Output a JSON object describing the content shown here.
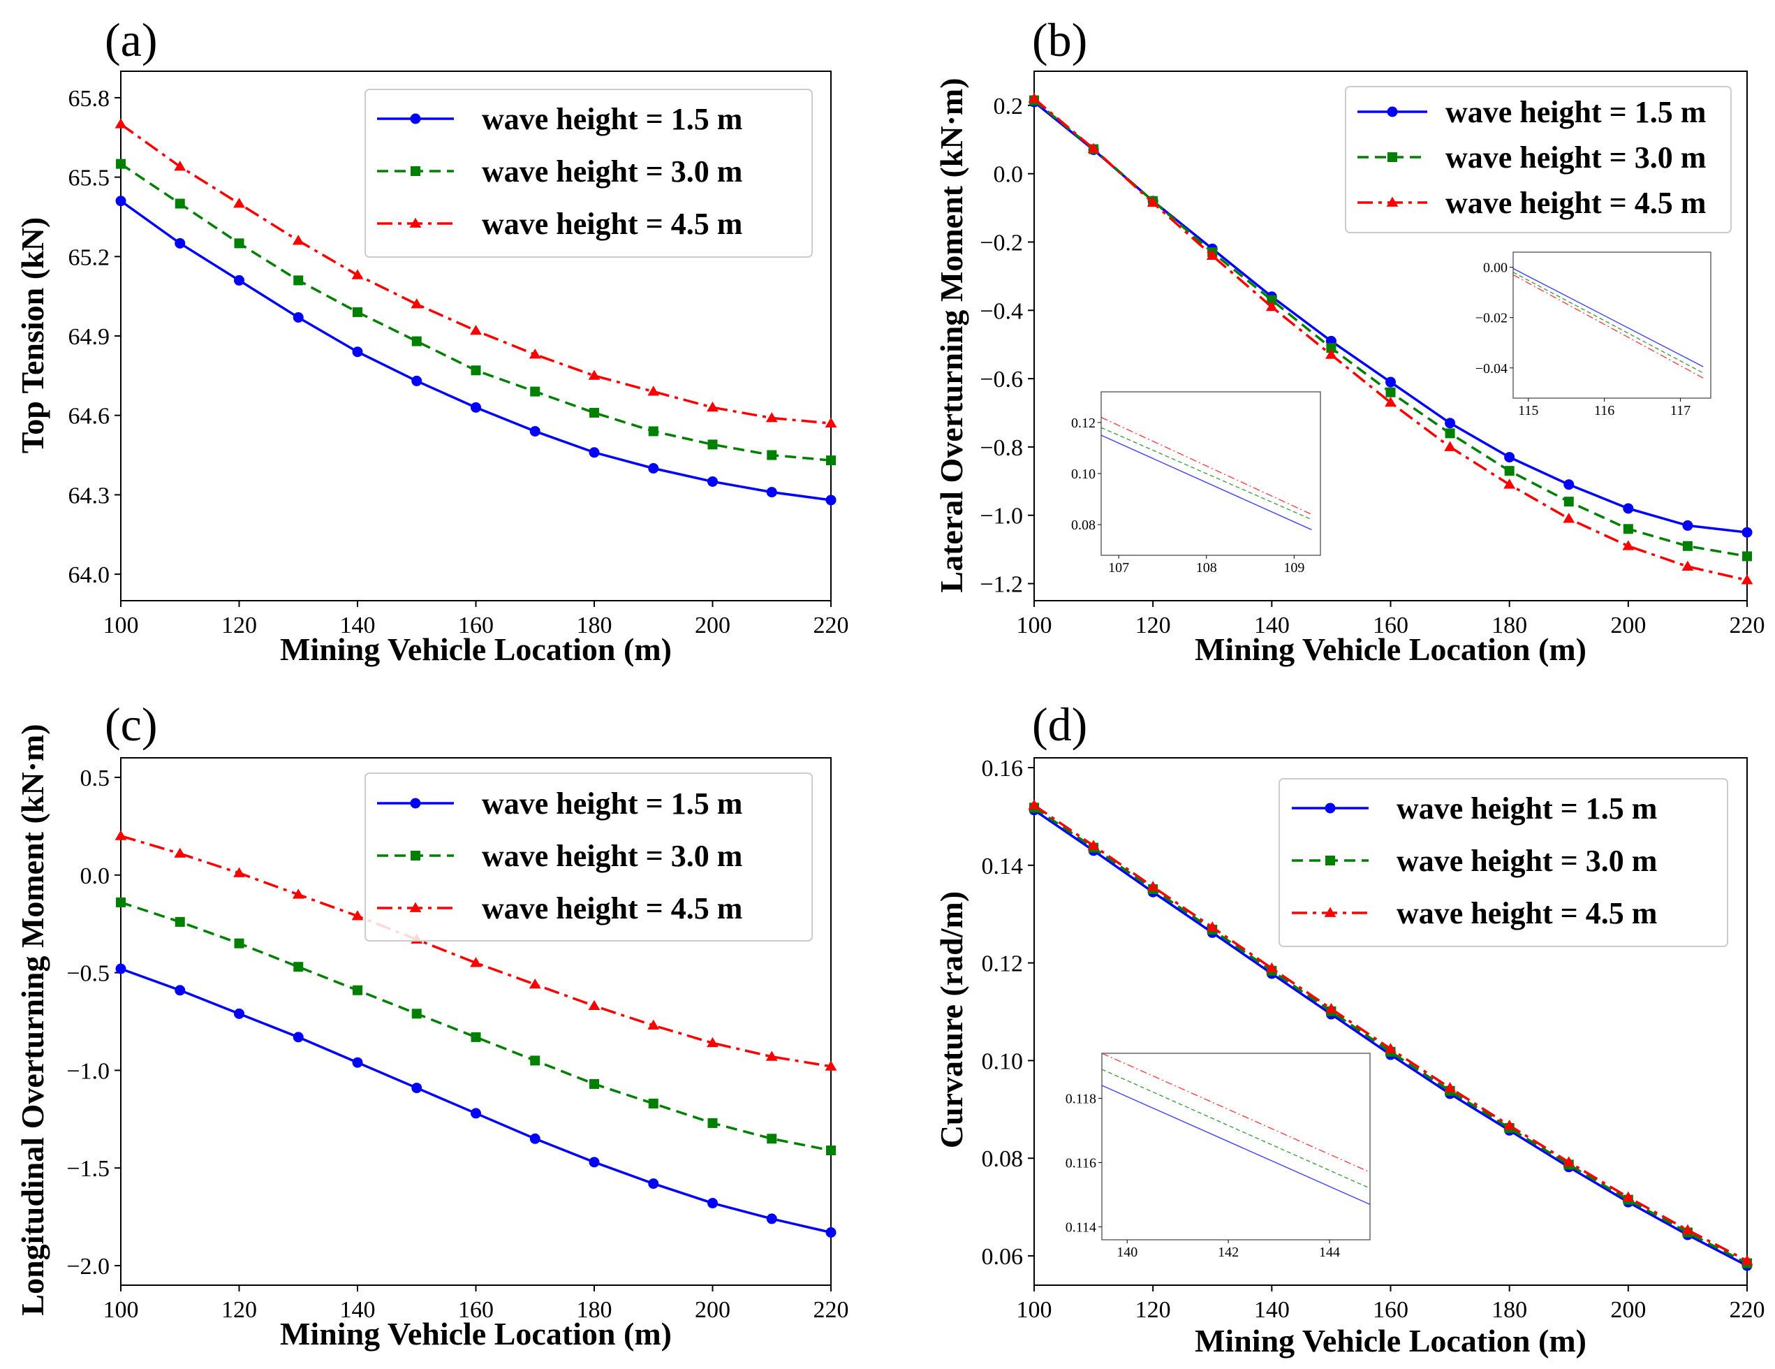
{
  "chart_data": [
    {
      "id": "a",
      "type": "line",
      "panel_label": "(a)",
      "title": "",
      "xlabel": "Mining Vehicle Location (m)",
      "ylabel": "Top Tension (kN)",
      "xlim": [
        100,
        220
      ],
      "ylim": [
        63.9,
        65.9
      ],
      "xticks": [
        100,
        120,
        140,
        160,
        180,
        200,
        220
      ],
      "yticks": [
        64.0,
        64.3,
        64.6,
        64.9,
        65.2,
        65.5,
        65.8
      ],
      "ytick_labels": [
        "64.0",
        "64.3",
        "64.6",
        "64.9",
        "65.2",
        "65.5",
        "65.8"
      ],
      "legend_position": "top-right",
      "x": [
        100,
        110,
        120,
        130,
        140,
        150,
        160,
        170,
        180,
        190,
        200,
        210,
        220
      ],
      "series": [
        {
          "name": "wave height = 1.5 m",
          "values": [
            65.41,
            65.25,
            65.11,
            64.97,
            64.84,
            64.73,
            64.63,
            64.54,
            64.46,
            64.4,
            64.35,
            64.31,
            64.28
          ]
        },
        {
          "name": "wave height = 3.0 m",
          "values": [
            65.55,
            65.4,
            65.25,
            65.11,
            64.99,
            64.88,
            64.77,
            64.69,
            64.61,
            64.54,
            64.49,
            64.45,
            64.43
          ]
        },
        {
          "name": "wave height = 4.5 m",
          "values": [
            65.7,
            65.54,
            65.4,
            65.26,
            65.13,
            65.02,
            64.92,
            64.83,
            64.75,
            64.69,
            64.63,
            64.59,
            64.57
          ]
        }
      ],
      "insets": []
    },
    {
      "id": "b",
      "type": "line",
      "panel_label": "(b)",
      "title": "",
      "xlabel": "Mining Vehicle Location (m)",
      "ylabel": "Lateral Overturning Moment (kN·m)",
      "xlim": [
        100,
        220
      ],
      "ylim": [
        -1.25,
        0.3
      ],
      "xticks": [
        100,
        120,
        140,
        160,
        180,
        200,
        220
      ],
      "yticks": [
        0.2,
        0.0,
        -0.2,
        -0.4,
        -0.6,
        -0.8,
        -1.0,
        -1.2
      ],
      "ytick_labels": [
        "0.2",
        "0.0",
        "−0.2",
        "−0.4",
        "−0.6",
        "−0.8",
        "−1.0",
        "−1.2"
      ],
      "legend_position": "top-right",
      "x": [
        100,
        110,
        120,
        130,
        140,
        150,
        160,
        170,
        180,
        190,
        200,
        210,
        220
      ],
      "series": [
        {
          "name": "wave height = 1.5 m",
          "values": [
            0.21,
            0.07,
            -0.08,
            -0.22,
            -0.36,
            -0.49,
            -0.61,
            -0.73,
            -0.83,
            -0.91,
            -0.98,
            -1.03,
            -1.05
          ]
        },
        {
          "name": "wave height = 3.0 m",
          "values": [
            0.215,
            0.072,
            -0.08,
            -0.23,
            -0.37,
            -0.51,
            -0.64,
            -0.76,
            -0.87,
            -0.96,
            -1.04,
            -1.09,
            -1.12
          ]
        },
        {
          "name": "wave height = 4.5 m",
          "values": [
            0.22,
            0.073,
            -0.085,
            -0.24,
            -0.39,
            -0.53,
            -0.67,
            -0.8,
            -0.91,
            -1.01,
            -1.09,
            -1.15,
            -1.19
          ]
        }
      ],
      "insets": [
        {
          "xlim": [
            106.8,
            109.3
          ],
          "ylim": [
            0.068,
            0.132
          ],
          "xticks": [
            107,
            108,
            109
          ],
          "yticks": [
            0.08,
            0.1,
            0.12
          ],
          "ytick_labels": [
            "0.08",
            "0.10",
            "0.12"
          ],
          "lines": [
            {
              "x": [
                106.8,
                109.2
              ],
              "y": [
                0.115,
                0.078
              ]
            },
            {
              "x": [
                106.8,
                109.2
              ],
              "y": [
                0.118,
                0.082
              ]
            },
            {
              "x": [
                106.8,
                109.2
              ],
              "y": [
                0.122,
                0.084
              ]
            }
          ]
        },
        {
          "xlim": [
            114.8,
            117.4
          ],
          "ylim": [
            -0.052,
            0.006
          ],
          "xticks": [
            115,
            116,
            117
          ],
          "yticks": [
            0.0,
            -0.02,
            -0.04
          ],
          "ytick_labels": [
            "0.00",
            "−0.02",
            "−0.04"
          ],
          "lines": [
            {
              "x": [
                114.8,
                117.3
              ],
              "y": [
                -0.0005,
                -0.0395
              ]
            },
            {
              "x": [
                114.8,
                117.3
              ],
              "y": [
                -0.002,
                -0.042
              ]
            },
            {
              "x": [
                114.8,
                117.3
              ],
              "y": [
                -0.003,
                -0.044
              ]
            }
          ]
        }
      ]
    },
    {
      "id": "c",
      "type": "line",
      "panel_label": "(c)",
      "title": "",
      "xlabel": "Mining Vehicle Location (m)",
      "ylabel": "Longitudinal Overturning Moment (kN·m)",
      "xlim": [
        100,
        220
      ],
      "ylim": [
        -2.1,
        0.6
      ],
      "xticks": [
        100,
        120,
        140,
        160,
        180,
        200,
        220
      ],
      "yticks": [
        0.5,
        0.0,
        -0.5,
        -1.0,
        -1.5,
        -2.0
      ],
      "ytick_labels": [
        "0.5",
        "0.0",
        "−0.5",
        "−1.0",
        "−1.5",
        "−2.0"
      ],
      "legend_position": "top-right",
      "x": [
        100,
        110,
        120,
        130,
        140,
        150,
        160,
        170,
        180,
        190,
        200,
        210,
        220
      ],
      "series": [
        {
          "name": "wave height = 1.5 m",
          "values": [
            -0.48,
            -0.59,
            -0.71,
            -0.83,
            -0.96,
            -1.09,
            -1.22,
            -1.35,
            -1.47,
            -1.58,
            -1.68,
            -1.76,
            -1.83
          ]
        },
        {
          "name": "wave height = 3.0 m",
          "values": [
            -0.14,
            -0.24,
            -0.35,
            -0.47,
            -0.59,
            -0.71,
            -0.83,
            -0.95,
            -1.07,
            -1.17,
            -1.27,
            -1.35,
            -1.41
          ]
        },
        {
          "name": "wave height = 4.5 m",
          "values": [
            0.2,
            0.11,
            0.01,
            -0.1,
            -0.21,
            -0.33,
            -0.45,
            -0.56,
            -0.67,
            -0.77,
            -0.86,
            -0.93,
            -0.98
          ]
        }
      ],
      "insets": []
    },
    {
      "id": "d",
      "type": "line",
      "panel_label": "(d)",
      "title": "",
      "xlabel": "Mining Vehicle Location (m)",
      "ylabel": "Curvature (rad/m)",
      "xlim": [
        100,
        220
      ],
      "ylim": [
        0.054,
        0.162
      ],
      "xticks": [
        100,
        120,
        140,
        160,
        180,
        200,
        220
      ],
      "yticks": [
        0.06,
        0.08,
        0.1,
        0.12,
        0.14,
        0.16
      ],
      "ytick_labels": [
        "0.06",
        "0.08",
        "0.10",
        "0.12",
        "0.14",
        "0.16"
      ],
      "legend_position": "top-right",
      "x": [
        100,
        110,
        120,
        130,
        140,
        150,
        160,
        170,
        180,
        190,
        200,
        210,
        220
      ],
      "series": [
        {
          "name": "wave height = 1.5 m",
          "values": [
            0.1513,
            0.143,
            0.1345,
            0.1262,
            0.1178,
            0.1095,
            0.1012,
            0.0932,
            0.0857,
            0.0782,
            0.071,
            0.0643,
            0.058
          ]
        },
        {
          "name": "wave height = 3.0 m",
          "values": [
            0.1518,
            0.1436,
            0.1351,
            0.1268,
            0.1184,
            0.1101,
            0.1018,
            0.0938,
            0.0862,
            0.0787,
            0.0715,
            0.0648,
            0.0585
          ]
        },
        {
          "name": "wave height = 4.5 m",
          "values": [
            0.1523,
            0.144,
            0.1356,
            0.1273,
            0.1189,
            0.1106,
            0.1024,
            0.0944,
            0.0867,
            0.0792,
            0.072,
            0.0653,
            0.059
          ]
        }
      ],
      "insets": [
        {
          "xlim": [
            139.5,
            144.8
          ],
          "ylim": [
            0.1136,
            0.1194
          ],
          "xticks": [
            140,
            142,
            144
          ],
          "yticks": [
            0.114,
            0.116,
            0.118
          ],
          "ytick_labels": [
            "0.114",
            "0.116",
            "0.118"
          ],
          "lines": [
            {
              "x": [
                139.5,
                144.8
              ],
              "y": [
                0.1184,
                0.1147
              ]
            },
            {
              "x": [
                139.5,
                144.8
              ],
              "y": [
                0.1189,
                0.1152
              ]
            },
            {
              "x": [
                139.5,
                144.8
              ],
              "y": [
                0.1194,
                0.1157
              ]
            }
          ]
        }
      ]
    }
  ],
  "styles": {
    "colors": [
      "#0000ff",
      "#008000",
      "#ff0000"
    ],
    "markers": [
      "circle",
      "square",
      "triangle"
    ],
    "dashes": [
      "solid",
      "dashed",
      "dashdot"
    ]
  }
}
